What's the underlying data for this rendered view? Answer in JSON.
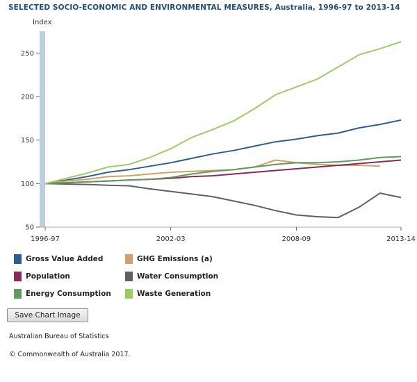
{
  "title": "SELECTED SOCIO-ECONOMIC AND ENVIRONMENTAL MEASURES, Australia, 1996-97 to 2013-14",
  "save_button_label": "Save Chart Image",
  "source": "Australian Bureau of Statistics",
  "copyright": "© Commonwealth of Australia 2017.",
  "chart_data": {
    "type": "line",
    "title": "SELECTED SOCIO-ECONOMIC AND ENVIRONMENTAL MEASURES, Australia, 1996-97 to 2013-14",
    "ylabel": "Index",
    "xlabel": "",
    "ylim": [
      50,
      275
    ],
    "yticks": [
      50,
      100,
      150,
      200,
      250
    ],
    "x": [
      "1996-97",
      "1997-98",
      "1998-99",
      "1999-00",
      "2000-01",
      "2001-02",
      "2002-03",
      "2003-04",
      "2004-05",
      "2005-06",
      "2006-07",
      "2007-08",
      "2008-09",
      "2009-10",
      "2010-11",
      "2011-12",
      "2012-13",
      "2013-14"
    ],
    "xtick_labels": [
      "1996-97",
      "2002-03",
      "2008-09",
      "2013-14"
    ],
    "grid": false,
    "legend_position": "bottom",
    "series": [
      {
        "name": "Gross Value Added",
        "color": "#2f5f8f",
        "values": [
          100,
          104,
          108,
          113,
          116,
          120,
          124,
          129,
          134,
          138,
          143,
          148,
          151,
          155,
          158,
          164,
          168,
          173
        ]
      },
      {
        "name": "GHG Emissions (a)",
        "color": "#d4a06a",
        "values": [
          100,
          103,
          105,
          108,
          109,
          111,
          113,
          114,
          115,
          116,
          119,
          127,
          124,
          122,
          121,
          121,
          120,
          null
        ]
      },
      {
        "name": "Population",
        "color": "#8b2a5a",
        "values": [
          100,
          101,
          102,
          103,
          104,
          105,
          106,
          108,
          109,
          111,
          113,
          115,
          117,
          119,
          121,
          123,
          125,
          127
        ]
      },
      {
        "name": "Water Consumption",
        "color": "#606060",
        "values": [
          100,
          99.5,
          99,
          98,
          97.5,
          94,
          91,
          88,
          85,
          80,
          75,
          69,
          64,
          62,
          61,
          73,
          89,
          84
        ]
      },
      {
        "name": "Energy Consumption",
        "color": "#5f9a5f",
        "values": [
          100,
          101,
          102,
          103,
          104,
          105,
          107,
          111,
          114,
          116,
          119,
          122,
          124,
          124,
          125,
          127,
          130,
          131
        ]
      },
      {
        "name": "Waste Generation",
        "color": "#9ccc65",
        "values": [
          100,
          106,
          112,
          119,
          122,
          130,
          140,
          153,
          162,
          172,
          186,
          202,
          211,
          220,
          234,
          248,
          255,
          263
        ]
      }
    ]
  }
}
